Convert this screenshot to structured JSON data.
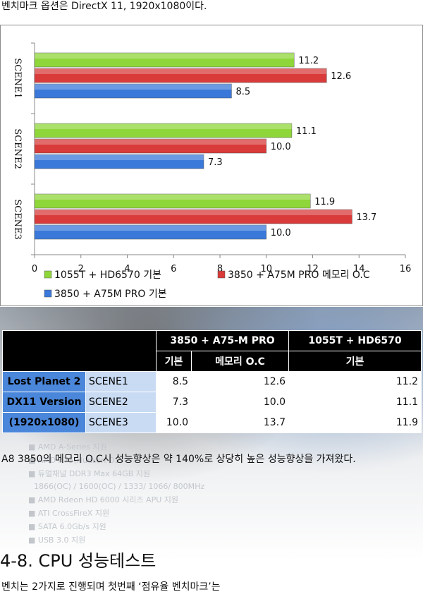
{
  "intro_text": "벤치마크 옵션은 DirectX 11, 1920x1080이다.",
  "chart_data": {
    "type": "bar",
    "orientation": "horizontal",
    "categories": [
      "SCENE1",
      "SCENE2",
      "SCENE3"
    ],
    "series": [
      {
        "name": "1055T + HD6570 기본",
        "color": "#8fd63a",
        "values": [
          11.2,
          11.1,
          11.9
        ]
      },
      {
        "name": "3850 + A75M PRO 메모리 O.C",
        "color": "#d93a3a",
        "values": [
          12.6,
          10.0,
          13.7
        ]
      },
      {
        "name": "3850 + A75M PRO 기본",
        "color": "#3a78d9",
        "values": [
          8.5,
          7.3,
          10.0
        ]
      }
    ],
    "xlim": [
      0,
      16
    ],
    "xticks": [
      "0",
      "2",
      "4",
      "6",
      "8",
      "10",
      "12",
      "14",
      "16"
    ],
    "legend_position": "bottom",
    "data_labels": true,
    "grid": false
  },
  "table": {
    "group_headers": [
      "3850 + A75-M PRO",
      "1055T + HD6570"
    ],
    "sub_headers": [
      "기본",
      "메모리 O.C",
      "기본"
    ],
    "game_lines": [
      "Lost Planet 2",
      "DX11 Version",
      "(1920x1080)"
    ],
    "rows": [
      {
        "scene": "SCENE1",
        "v1": "8.5",
        "v2": "12.6",
        "v3": "11.2"
      },
      {
        "scene": "SCENE2",
        "v1": "7.3",
        "v2": "10.0",
        "v3": "11.1"
      },
      {
        "scene": "SCENE3",
        "v1": "10.0",
        "v2": "13.7",
        "v3": "11.9"
      }
    ]
  },
  "paragraph": "A8 3850의 메모리 O.C시 성능향상은 약 140%로 상당히 높은 성능향상을 가져왔다.",
  "section_title": "4-8. CPU 성능테스트",
  "paragraph2": "벤치는 2가지로 진행되며 첫번째 ‘점유율 벤치마크’는",
  "watermark_lines": [
    "■ AMD A-Series 지원",
    "■ AMD A75(Hudson-D3)",
    "■ 듀얼채널 DDR3 Max 64GB 지원",
    "1866(OC) / 1600(OC) / 1333/ 1066/ 800MHz",
    "■ AMD Rdeon HD 6000 시리즈 APU 지원",
    "■ ATI CrossFireX 지원",
    "■ SATA 6.0Gb/s 지원",
    "■ USB 3.0 지원"
  ]
}
